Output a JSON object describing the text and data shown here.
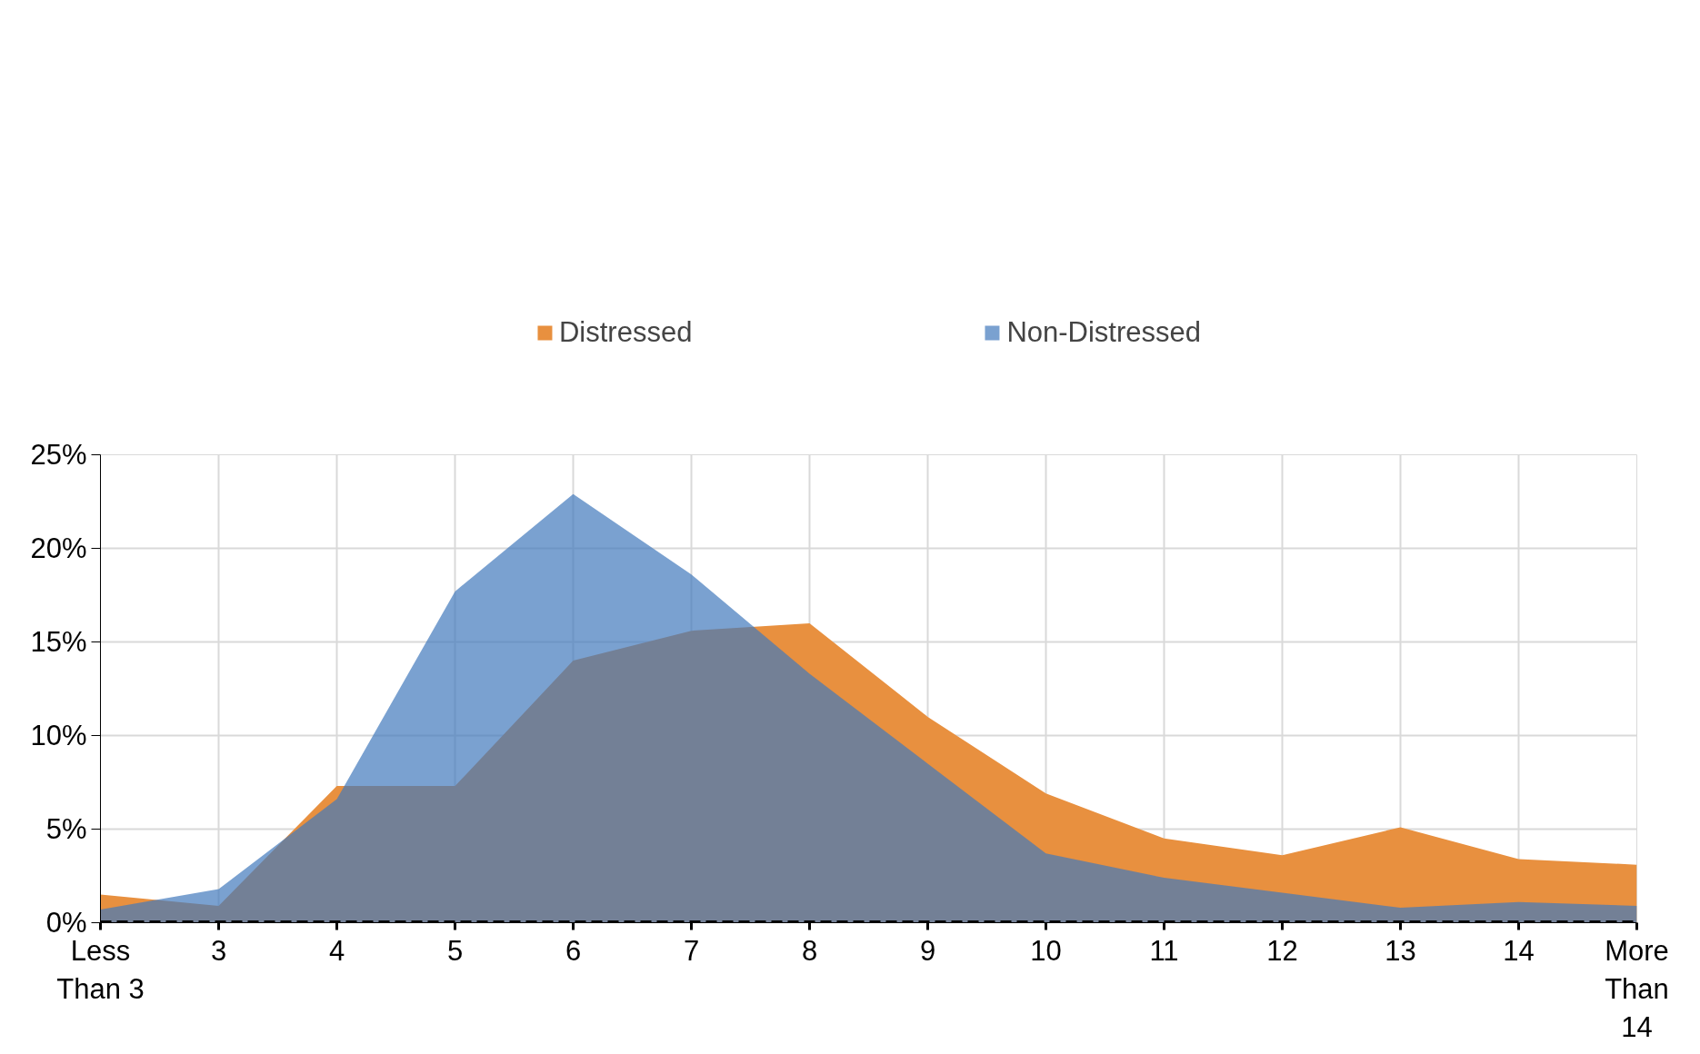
{
  "chart_data": {
    "type": "area",
    "categories": [
      "Less\nThan 3",
      "3",
      "4",
      "5",
      "6",
      "7",
      "8",
      "9",
      "10",
      "11",
      "12",
      "13",
      "14",
      "More\nThan\n14"
    ],
    "series": [
      {
        "name": "Distressed",
        "color": "#e8903f",
        "values": [
          1.5,
          0.9,
          7.3,
          7.3,
          14.0,
          15.6,
          16.0,
          11.0,
          6.9,
          4.5,
          3.6,
          5.1,
          3.4,
          3.1
        ]
      },
      {
        "name": "Non-Distressed",
        "color": "#4279bc",
        "values": [
          0.7,
          1.8,
          6.6,
          17.7,
          22.9,
          18.6,
          13.3,
          8.5,
          3.7,
          2.4,
          1.6,
          0.8,
          1.1,
          0.9
        ]
      }
    ],
    "ylim": [
      0,
      25
    ],
    "yticks": [
      {
        "value": 0,
        "label": "0%"
      },
      {
        "value": 5,
        "label": "5%"
      },
      {
        "value": 10,
        "label": "10%"
      },
      {
        "value": 15,
        "label": "15%"
      },
      {
        "value": 20,
        "label": "20%"
      },
      {
        "value": 25,
        "label": "25%"
      }
    ],
    "ref_lines": [
      {
        "axis": "y",
        "value": 0,
        "color": "#000000",
        "line_style": "dashed"
      }
    ],
    "grid": true,
    "legend": "top"
  }
}
